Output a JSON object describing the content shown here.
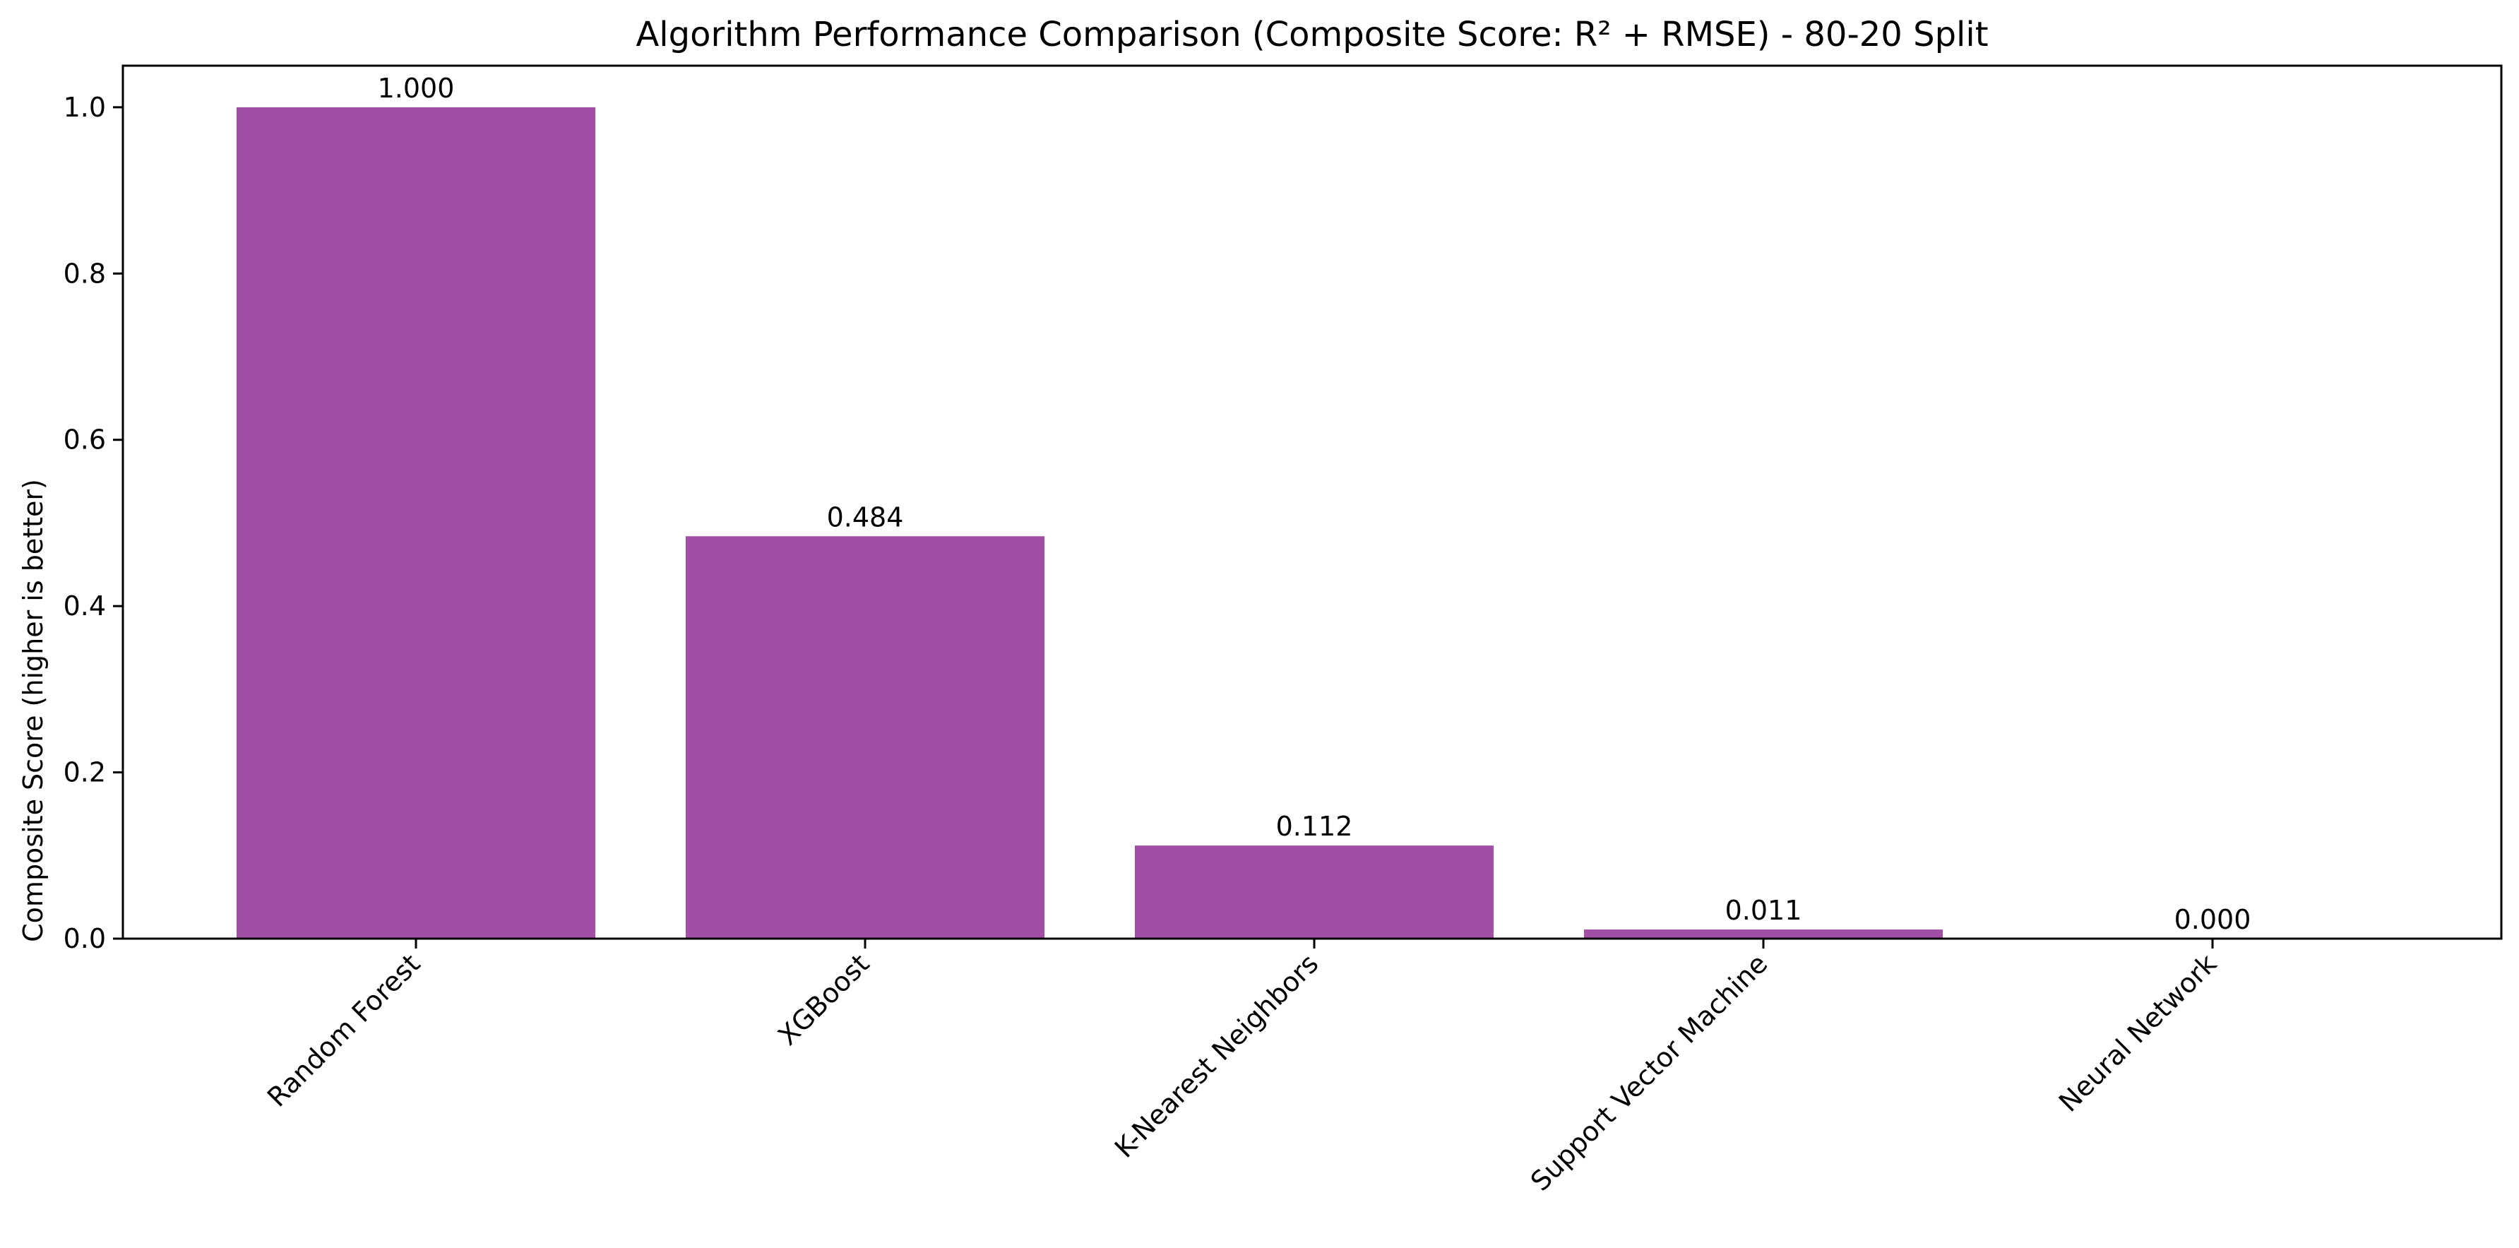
{
  "chart_data": {
    "type": "bar",
    "title": "Algorithm Performance Comparison (Composite Score: R² + RMSE) - 80-20 Split",
    "xlabel": "",
    "ylabel": "Composite Score (higher is better)",
    "categories": [
      "Random Forest",
      "XGBoost",
      "K-Nearest Neighbors",
      "Support Vector Machine",
      "Neural Network"
    ],
    "values": [
      1.0,
      0.484,
      0.112,
      0.011,
      0.0
    ],
    "data_labels": [
      "1.000",
      "0.484",
      "0.112",
      "0.011",
      "0.000"
    ],
    "yticks": [
      0.0,
      0.2,
      0.4,
      0.6,
      0.8,
      1.0
    ],
    "ytick_labels": [
      "0.0",
      "0.2",
      "0.4",
      "0.6",
      "0.8",
      "1.0"
    ],
    "ylim": [
      0,
      1.05
    ],
    "grid": false,
    "legend": "none",
    "bar_color": "#a34ea5"
  }
}
